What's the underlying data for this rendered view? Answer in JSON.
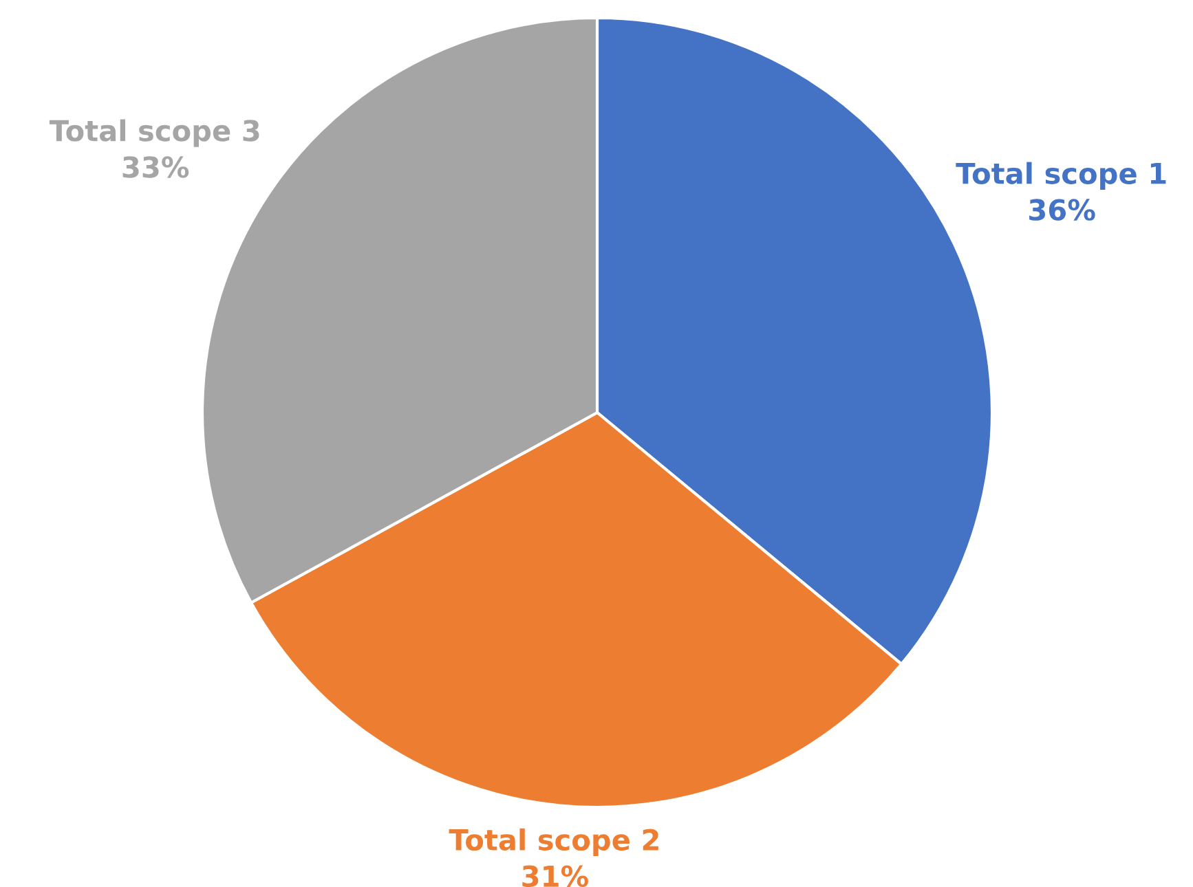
{
  "chart_data": {
    "type": "pie",
    "categories": [
      "Total scope 1",
      "Total scope 2",
      "Total scope 3"
    ],
    "values": [
      36,
      31,
      33
    ],
    "colors": [
      "#4472c4",
      "#ed7d31",
      "#a5a5a5"
    ],
    "value_labels": [
      "36%",
      "31%",
      "33%"
    ]
  }
}
